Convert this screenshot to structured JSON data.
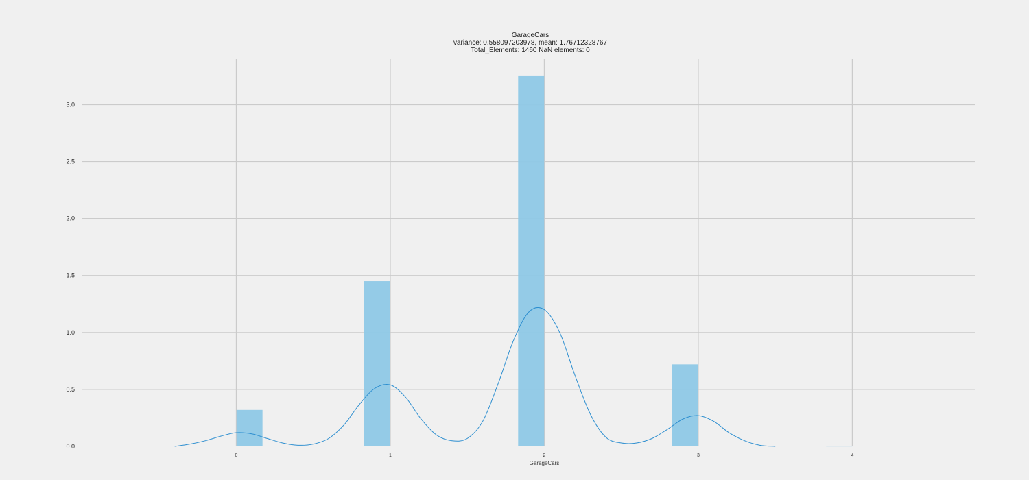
{
  "chart_data": {
    "type": "bar",
    "title": "GarageCars",
    "subtitle_lines": [
      "variance: 0.558097203978, mean: 1.76712328767",
      "Total_Elements: 1460 NaN elements: 0"
    ],
    "xlabel": "GarageCars",
    "ylabel": "",
    "xlim": [
      -1.0,
      4.8
    ],
    "ylim": [
      0,
      3.4
    ],
    "x_ticks": [
      0,
      1,
      2,
      3,
      4
    ],
    "y_ticks": [
      0.0,
      0.5,
      1.0,
      1.5,
      2.0,
      2.5,
      3.0
    ],
    "grid": true,
    "bars": [
      {
        "x0": 0.0,
        "x1": 0.17,
        "value": 0.32
      },
      {
        "x0": 0.83,
        "x1": 1.0,
        "value": 1.45
      },
      {
        "x0": 1.83,
        "x1": 2.0,
        "value": 3.25
      },
      {
        "x0": 2.83,
        "x1": 3.0,
        "value": 0.72
      },
      {
        "x0": 3.83,
        "x1": 4.0,
        "value": 0.004
      }
    ],
    "kde": {
      "x": [
        -0.4,
        -0.3,
        -0.2,
        -0.1,
        0.0,
        0.1,
        0.2,
        0.3,
        0.4,
        0.5,
        0.6,
        0.7,
        0.8,
        0.9,
        1.0,
        1.1,
        1.2,
        1.3,
        1.4,
        1.5,
        1.6,
        1.7,
        1.8,
        1.9,
        2.0,
        2.1,
        2.2,
        2.3,
        2.4,
        2.5,
        2.6,
        2.7,
        2.8,
        2.9,
        3.0,
        3.1,
        3.2,
        3.3,
        3.4,
        3.5
      ],
      "y": [
        0.0,
        0.02,
        0.05,
        0.09,
        0.12,
        0.11,
        0.07,
        0.03,
        0.01,
        0.02,
        0.07,
        0.19,
        0.37,
        0.51,
        0.54,
        0.43,
        0.24,
        0.1,
        0.05,
        0.07,
        0.22,
        0.55,
        0.93,
        1.18,
        1.2,
        1.0,
        0.62,
        0.28,
        0.08,
        0.03,
        0.03,
        0.07,
        0.15,
        0.24,
        0.27,
        0.22,
        0.12,
        0.05,
        0.01,
        0.0
      ]
    },
    "colors": {
      "bar": "#8ec8e6",
      "kde": "#2e8fd0",
      "grid": "#cbcbcb",
      "background": "#f0f0f0"
    }
  }
}
